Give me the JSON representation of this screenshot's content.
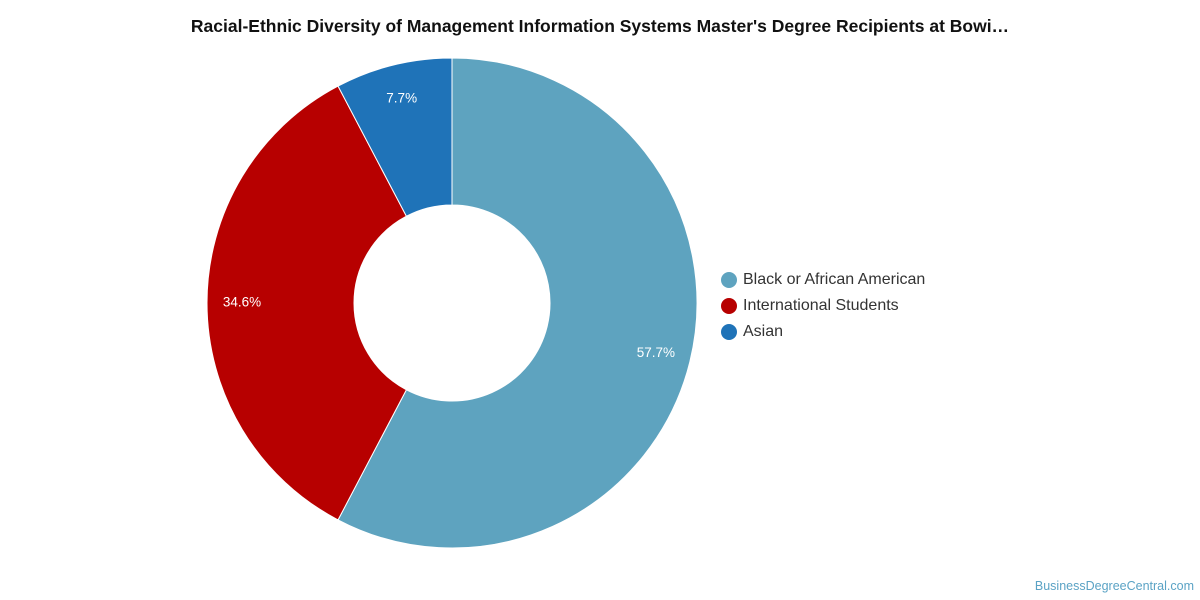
{
  "chart_data": {
    "type": "pie",
    "title": "Racial-Ethnic Diversity of Management Information Systems Master's Degree Recipients at Bowi…",
    "donut": true,
    "slices": [
      {
        "name": "Black or African American",
        "value": 57.7,
        "label": "57.7%",
        "color": "#5ea3bf"
      },
      {
        "name": "International Students",
        "value": 34.6,
        "label": "34.6%",
        "color": "#b70000"
      },
      {
        "name": "Asian",
        "value": 7.7,
        "label": "7.7%",
        "color": "#1f73b8"
      }
    ],
    "legend": "right"
  },
  "watermark": "BusinessDegreeCentral.com"
}
